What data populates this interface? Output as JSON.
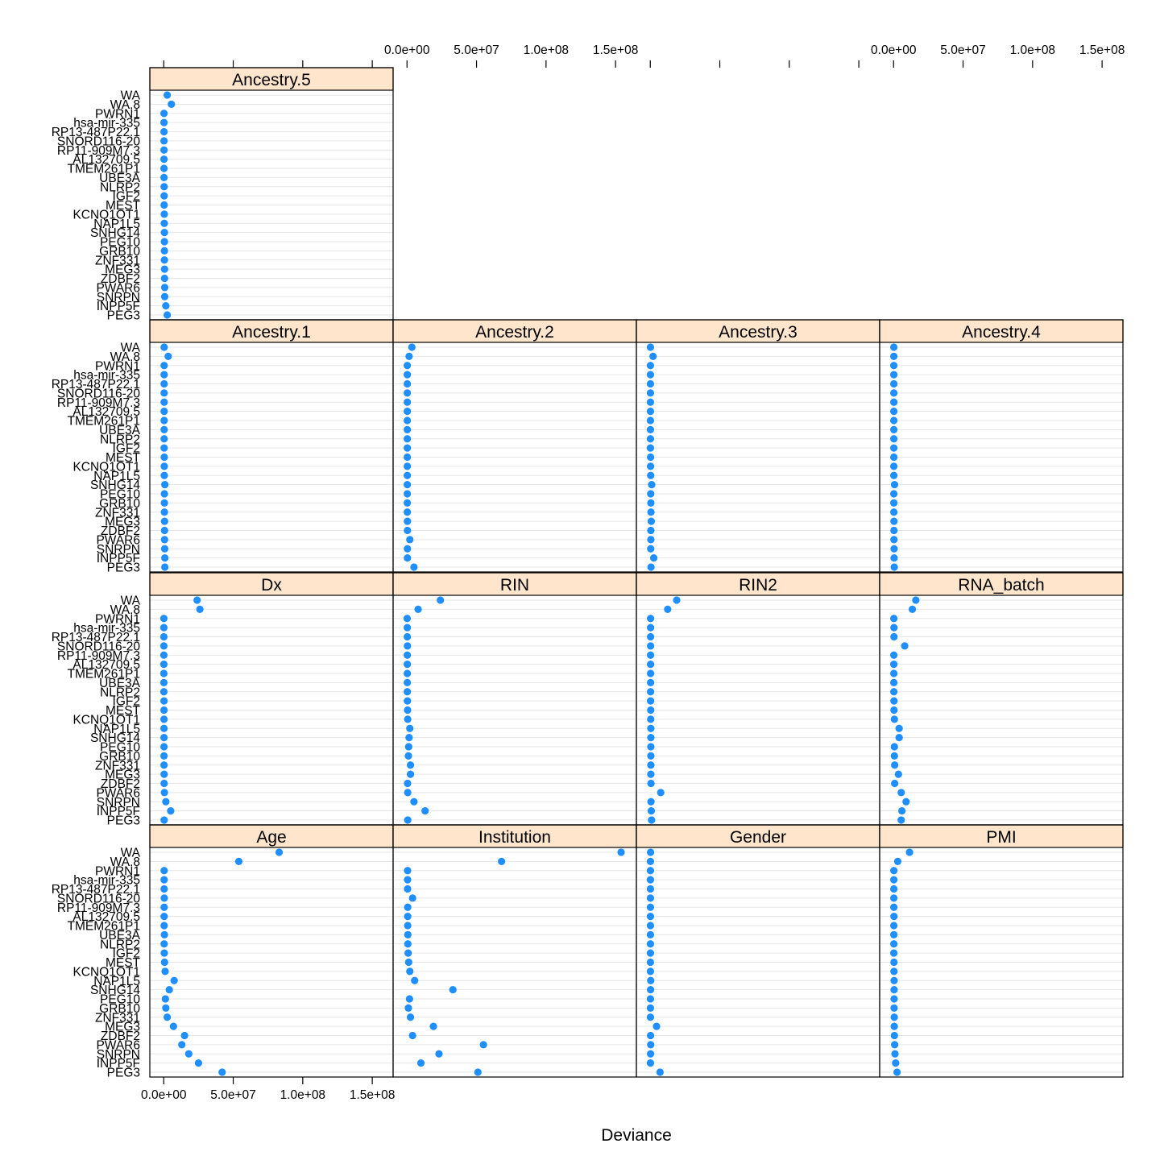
{
  "chart_data": {
    "type": "scatter",
    "plot_kind": "dotplot-lattice",
    "xlabel": "Deviance",
    "xlim": [
      -10000000,
      165000000
    ],
    "x_ticks": [
      0,
      50000000,
      100000000,
      150000000
    ],
    "x_tick_labels": [
      "0.0e+00",
      "5.0e+07",
      "1.0e+08",
      "1.5e+08"
    ],
    "grid": true,
    "layout": {
      "columns": 4,
      "rows": 4
    },
    "genes": [
      "WA",
      "WA.8",
      "PWRN1",
      "hsa-mir-335",
      "RP13-487P22.1",
      "SNORD116-20",
      "RP11-909M7.3",
      "AL132709.5",
      "TMEM261P1",
      "UBE3A",
      "NLRP2",
      "IGF2",
      "MEST",
      "KCNQ1OT1",
      "NAP1L5",
      "SNHG14",
      "PEG10",
      "GRB10",
      "ZNF331",
      "MEG3",
      "ZDBF2",
      "PWAR6",
      "SNRPN",
      "INPP5F",
      "PEG3"
    ],
    "panels": [
      {
        "name": "Age",
        "values": [
          83000000,
          54000000,
          300000,
          300000,
          300000,
          400000,
          300000,
          300000,
          300000,
          500000,
          300000,
          400000,
          600000,
          1000000,
          7500000,
          4000000,
          1200000,
          1500000,
          2500000,
          7000000,
          15000000,
          13000000,
          18000000,
          25000000,
          42000000
        ]
      },
      {
        "name": "Institution",
        "values": [
          154000000,
          68000000,
          400000,
          400000,
          400000,
          4000000,
          500000,
          500000,
          500000,
          600000,
          600000,
          800000,
          1200000,
          2000000,
          5500000,
          33000000,
          1800000,
          1000000,
          2500000,
          19000000,
          4000000,
          55000000,
          23000000,
          10000000,
          51000000
        ]
      },
      {
        "name": "Gender",
        "values": [
          200000,
          100000,
          100000,
          100000,
          100000,
          100000,
          100000,
          100000,
          100000,
          100000,
          100000,
          100000,
          100000,
          100000,
          300000,
          200000,
          100000,
          100000,
          100000,
          4500000,
          200000,
          300000,
          200000,
          100000,
          7000000
        ]
      },
      {
        "name": "PMI",
        "values": [
          11500000,
          3000000,
          200000,
          200000,
          200000,
          200000,
          200000,
          300000,
          200000,
          200000,
          200000,
          200000,
          300000,
          300000,
          400000,
          400000,
          400000,
          400000,
          500000,
          500000,
          600000,
          800000,
          1000000,
          1500000,
          2500000
        ]
      },
      {
        "name": "Dx",
        "values": [
          24000000,
          26000000,
          100000,
          100000,
          100000,
          100000,
          100000,
          100000,
          100000,
          100000,
          100000,
          200000,
          200000,
          200000,
          200000,
          200000,
          200000,
          200000,
          200000,
          300000,
          300000,
          500000,
          1500000,
          5000000,
          300000
        ]
      },
      {
        "name": "RIN",
        "values": [
          24000000,
          8000000,
          100000,
          200000,
          200000,
          300000,
          200000,
          200000,
          200000,
          200000,
          200000,
          300000,
          400000,
          500000,
          2000000,
          1500000,
          1200000,
          1000000,
          2500000,
          2500000,
          400000,
          500000,
          5000000,
          13000000,
          500000
        ]
      },
      {
        "name": "RIN2",
        "values": [
          19000000,
          12500000,
          200000,
          200000,
          200000,
          200000,
          200000,
          200000,
          200000,
          200000,
          200000,
          200000,
          300000,
          300000,
          400000,
          400000,
          400000,
          400000,
          400000,
          400000,
          500000,
          7500000,
          500000,
          700000,
          900000
        ]
      },
      {
        "name": "RNA_batch",
        "values": [
          16000000,
          13500000,
          200000,
          300000,
          300000,
          8000000,
          200000,
          200000,
          200000,
          200000,
          200000,
          300000,
          300000,
          600000,
          4000000,
          4000000,
          600000,
          600000,
          800000,
          3500000,
          800000,
          5500000,
          9000000,
          6000000,
          5500000
        ]
      },
      {
        "name": "Ancestry.1",
        "values": [
          300000,
          3200000,
          300000,
          300000,
          300000,
          300000,
          300000,
          300000,
          300000,
          300000,
          300000,
          300000,
          400000,
          400000,
          400000,
          800000,
          500000,
          500000,
          500000,
          600000,
          600000,
          600000,
          700000,
          800000,
          800000
        ]
      },
      {
        "name": "Ancestry.2",
        "values": [
          3500000,
          1500000,
          200000,
          200000,
          200000,
          200000,
          200000,
          200000,
          200000,
          200000,
          200000,
          200000,
          200000,
          200000,
          200000,
          200000,
          200000,
          200000,
          200000,
          300000,
          300000,
          2000000,
          300000,
          300000,
          5000000
        ]
      },
      {
        "name": "Ancestry.3",
        "values": [
          100000,
          2000000,
          100000,
          100000,
          100000,
          100000,
          100000,
          100000,
          100000,
          100000,
          100000,
          100000,
          200000,
          200000,
          300000,
          1000000,
          300000,
          400000,
          500000,
          700000,
          400000,
          400000,
          300000,
          2500000,
          500000
        ]
      },
      {
        "name": "Ancestry.4",
        "values": [
          200000,
          200000,
          200000,
          200000,
          200000,
          200000,
          200000,
          200000,
          200000,
          200000,
          200000,
          200000,
          200000,
          200000,
          200000,
          700000,
          200000,
          200000,
          200000,
          300000,
          300000,
          300000,
          400000,
          400000,
          500000
        ]
      },
      {
        "name": "Ancestry.5",
        "values": [
          2500000,
          5500000,
          200000,
          200000,
          200000,
          200000,
          200000,
          200000,
          200000,
          200000,
          300000,
          300000,
          300000,
          400000,
          400000,
          500000,
          500000,
          500000,
          500000,
          600000,
          600000,
          700000,
          700000,
          1500000,
          2500000
        ]
      }
    ],
    "colors": {
      "point": "#1f8fff",
      "strip": "#ffe5cc",
      "frame": "#000000",
      "grid": "#e6e6e6"
    }
  }
}
